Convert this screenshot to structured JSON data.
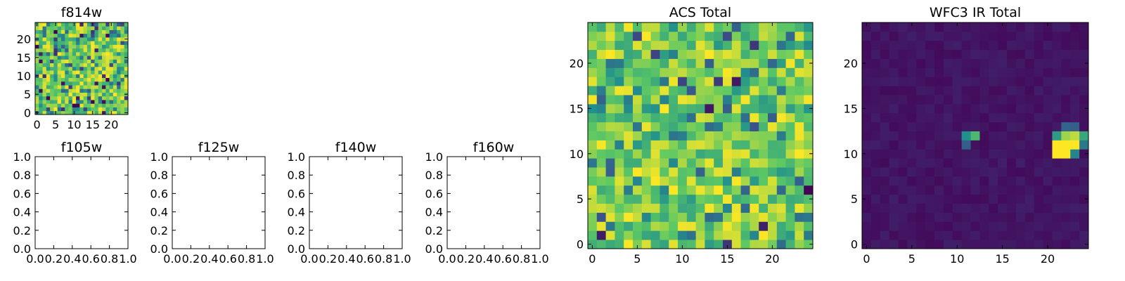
{
  "figure": {
    "background": "#ffffff"
  },
  "colormap": [
    "#440154",
    "#3b528b",
    "#21908d",
    "#5dc863",
    "#fde725"
  ],
  "chart_data": [
    {
      "id": "f814w",
      "type": "heatmap",
      "title": "f814w",
      "grid_size": 25,
      "xlim": [
        -0.5,
        24.5
      ],
      "ylim": [
        -0.5,
        24.5
      ],
      "xticks": [
        0,
        5,
        10,
        15,
        20
      ],
      "yticks": [
        0,
        5,
        10,
        15,
        20
      ],
      "pattern": "noise",
      "seed": 11,
      "value_mix": {
        "yellow_green_share": 0.75,
        "dark_share": 0.08
      }
    },
    {
      "id": "f105w",
      "type": "empty",
      "title": "f105w",
      "xlim": [
        0.0,
        1.0
      ],
      "ylim": [
        0.0,
        1.0
      ],
      "xticks": [
        "0.0",
        "0.2",
        "0.4",
        "0.6",
        "0.8",
        "1.0"
      ],
      "yticks": [
        "0.0",
        "0.2",
        "0.4",
        "0.6",
        "0.8",
        "1.0"
      ]
    },
    {
      "id": "f125w",
      "type": "empty",
      "title": "f125w",
      "xlim": [
        0.0,
        1.0
      ],
      "ylim": [
        0.0,
        1.0
      ],
      "xticks": [
        "0.0",
        "0.2",
        "0.4",
        "0.6",
        "0.8",
        "1.0"
      ],
      "yticks": [
        "0.0",
        "0.2",
        "0.4",
        "0.6",
        "0.8",
        "1.0"
      ]
    },
    {
      "id": "f140w",
      "type": "empty",
      "title": "f140w",
      "xlim": [
        0.0,
        1.0
      ],
      "ylim": [
        0.0,
        1.0
      ],
      "xticks": [
        "0.0",
        "0.2",
        "0.4",
        "0.6",
        "0.8",
        "1.0"
      ],
      "yticks": [
        "0.0",
        "0.2",
        "0.4",
        "0.6",
        "0.8",
        "1.0"
      ]
    },
    {
      "id": "f160w",
      "type": "empty",
      "title": "f160w",
      "xlim": [
        0.0,
        1.0
      ],
      "ylim": [
        0.0,
        1.0
      ],
      "xticks": [
        "0.0",
        "0.2",
        "0.4",
        "0.6",
        "0.8",
        "1.0"
      ],
      "yticks": [
        "0.0",
        "0.2",
        "0.4",
        "0.6",
        "0.8",
        "1.0"
      ]
    },
    {
      "id": "acs-total",
      "type": "heatmap",
      "title": "ACS Total",
      "grid_size": 25,
      "xlim": [
        -0.5,
        24.5
      ],
      "ylim": [
        -0.5,
        24.5
      ],
      "xticks": [
        0,
        5,
        10,
        15,
        20
      ],
      "yticks": [
        0,
        5,
        10,
        15,
        20
      ],
      "pattern": "noise",
      "seed": 42,
      "value_mix": {
        "yellow_green_share": 0.8,
        "dark_share": 0.05
      }
    },
    {
      "id": "wfc3-ir-total",
      "type": "heatmap",
      "title": "WFC3 IR Total",
      "grid_size": 25,
      "xlim": [
        -0.5,
        24.5
      ],
      "ylim": [
        -0.5,
        24.5
      ],
      "xticks": [
        0,
        5,
        10,
        15,
        20
      ],
      "yticks": [
        0,
        5,
        10,
        15,
        20
      ],
      "pattern": "background",
      "seed": 7,
      "background_level": 0.06,
      "hotspots": [
        {
          "x": 11,
          "y": 12,
          "value": 0.5
        },
        {
          "x": 12,
          "y": 12,
          "value": 0.68
        },
        {
          "x": 11,
          "y": 11,
          "value": 0.3
        },
        {
          "x": 21,
          "y": 11,
          "value": 1.0
        },
        {
          "x": 22,
          "y": 11,
          "value": 1.0
        },
        {
          "x": 23,
          "y": 11,
          "value": 1.0
        },
        {
          "x": 21,
          "y": 10,
          "value": 1.0
        },
        {
          "x": 22,
          "y": 10,
          "value": 1.0
        },
        {
          "x": 23,
          "y": 10,
          "value": 0.45
        },
        {
          "x": 21,
          "y": 12,
          "value": 0.55
        },
        {
          "x": 22,
          "y": 12,
          "value": 0.85
        },
        {
          "x": 23,
          "y": 12,
          "value": 0.9
        },
        {
          "x": 24,
          "y": 11,
          "value": 0.4
        },
        {
          "x": 22,
          "y": 13,
          "value": 0.32
        },
        {
          "x": 23,
          "y": 13,
          "value": 0.3
        },
        {
          "x": 24,
          "y": 12,
          "value": 0.6
        }
      ]
    }
  ]
}
